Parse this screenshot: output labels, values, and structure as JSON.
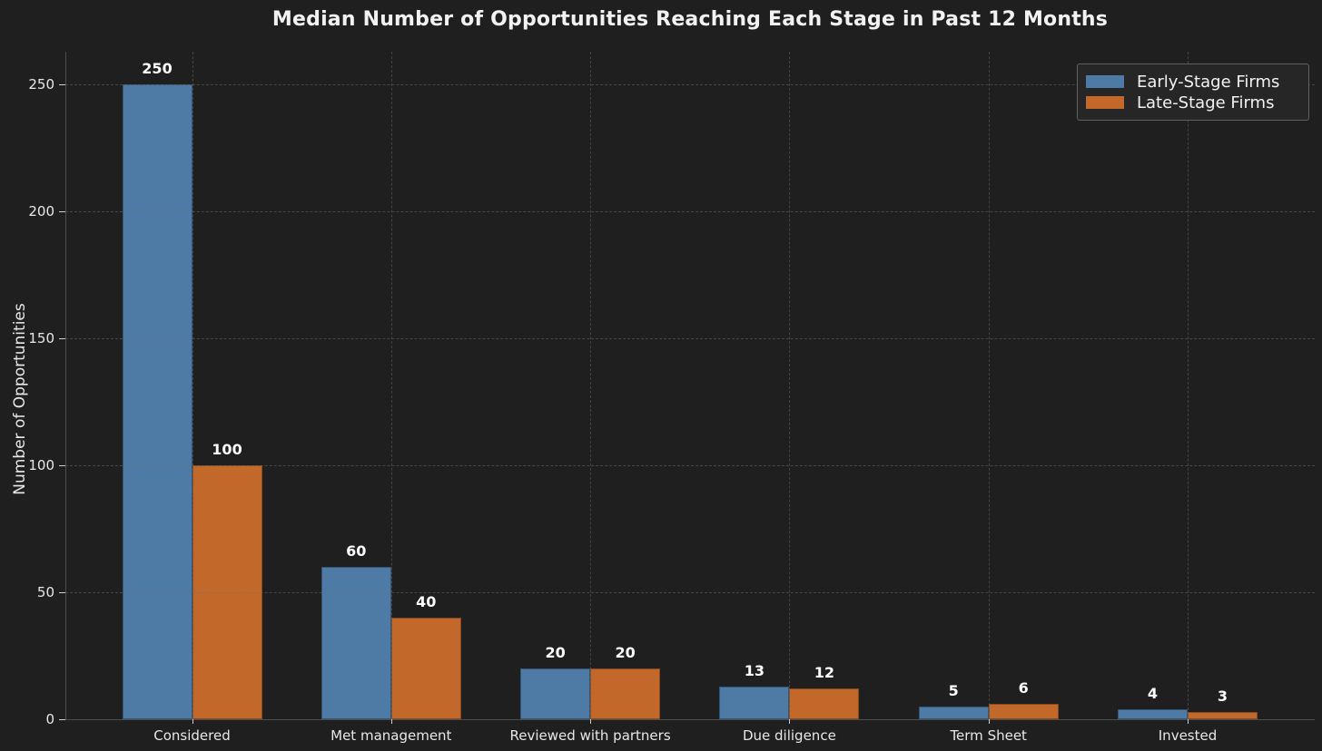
{
  "figure": {
    "background": "#1f1f1f",
    "text_color": "#e8e8e8",
    "accent_blue": "#4d7ba6",
    "accent_orange": "#c2682b"
  },
  "chart_data": {
    "type": "bar",
    "title": "Median Number of Opportunities Reaching Each Stage in Past 12 Months",
    "ylabel": "Number of Opportunities",
    "xlabel": "",
    "categories": [
      "Considered",
      "Met management",
      "Reviewed with partners",
      "Due diligence",
      "Term Sheet",
      "Invested"
    ],
    "series": [
      {
        "name": "Early-Stage Firms",
        "color": "#4d7ba6",
        "values": [
          250,
          60,
          20,
          13,
          5,
          4
        ]
      },
      {
        "name": "Late-Stage Firms",
        "color": "#c2682b",
        "values": [
          100,
          40,
          20,
          12,
          6,
          3
        ]
      }
    ],
    "yticks": [
      0,
      50,
      100,
      150,
      200,
      250
    ],
    "ylim": [
      0,
      262
    ],
    "grid": "dashed",
    "grid_on": true,
    "bar_value_labels": true,
    "legend_position": "upper-right",
    "legend_items": [
      "Early-Stage Firms",
      "Late-Stage Firms"
    ]
  }
}
